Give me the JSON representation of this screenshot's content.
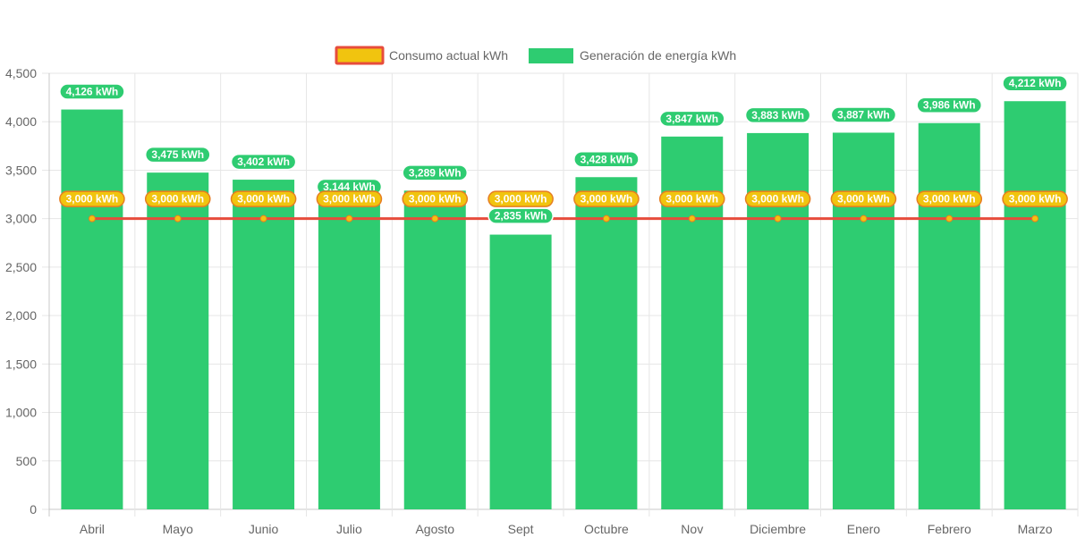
{
  "chart_data": {
    "type": "bar",
    "categories": [
      "Abril",
      "Mayo",
      "Junio",
      "Julio",
      "Agosto",
      "Sept",
      "Octubre",
      "Nov",
      "Diciembre",
      "Enero",
      "Febrero",
      "Marzo"
    ],
    "series": [
      {
        "name": "Consumo actual kWh",
        "type": "line",
        "values": [
          3000,
          3000,
          3000,
          3000,
          3000,
          3000,
          3000,
          3000,
          3000,
          3000,
          3000,
          3000
        ],
        "labels": [
          "3,000 kWh",
          "3,000 kWh",
          "3,000 kWh",
          "3,000 kWh",
          "3,000 kWh",
          "3,000 kWh",
          "3,000 kWh",
          "3,000 kWh",
          "3,000 kWh",
          "3,000 kWh",
          "3,000 kWh",
          "3,000 kWh"
        ],
        "color": "#f1c40f",
        "border_color": "#e74c3c"
      },
      {
        "name": "Generación de energía kWh",
        "type": "bar",
        "values": [
          4126,
          3475,
          3402,
          3144,
          3289,
          2835,
          3428,
          3847,
          3883,
          3887,
          3986,
          4212
        ],
        "labels": [
          "4,126 kWh",
          "3,475 kWh",
          "3,402 kWh",
          "3,144 kWh",
          "3,289 kWh",
          "2,835 kWh",
          "3,428 kWh",
          "3,847 kWh",
          "3,883 kWh",
          "3,887 kWh",
          "3,986 kWh",
          "4,212 kWh"
        ],
        "color": "#2ecc71"
      }
    ],
    "ylim": [
      0,
      4500
    ],
    "yticks": [
      "0",
      "500",
      "1,000",
      "1,500",
      "2,000",
      "2,500",
      "3,000",
      "3,500",
      "4,000",
      "4,500"
    ],
    "grid": true,
    "legend_position": "top"
  }
}
